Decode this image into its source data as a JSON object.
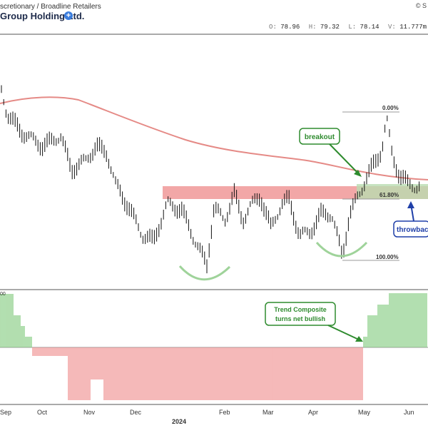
{
  "header": {
    "sector": "scretionary / Broadline Retailers",
    "company": "Group Holding Ltd.",
    "top_right": "© S",
    "ohlc": [
      {
        "label": "O:",
        "value": "78.96"
      },
      {
        "label": "H:",
        "value": "79.32"
      },
      {
        "label": "L:",
        "value": "78.14"
      },
      {
        "label": "V:",
        "value": "11.777m"
      }
    ]
  },
  "colors": {
    "ma_line": "#e58a86",
    "resistance_zone": "#f2a7a7",
    "support_zone": "#b9dcb0",
    "positive_bars": "#7ec97a",
    "negative_bars": "#ee8a8a",
    "annotation_green": "#2e8b2e",
    "annotation_blue": "#1f3fa8",
    "bars": "#111111"
  },
  "chart_data": [
    {
      "type": "ohlc",
      "series": [
        {
          "name": "price",
          "x_dates": [
            "Sep",
            "Oct",
            "Nov",
            "Dec",
            "2024",
            "Feb",
            "Mar",
            "Apr",
            "May",
            "Jun"
          ],
          "approx_closes": [
            88,
            85,
            82,
            86,
            79,
            80,
            79,
            78,
            77,
            78,
            79,
            80,
            78,
            79,
            84,
            86,
            89,
            84,
            80,
            79
          ]
        }
      ],
      "fibonacci": [
        {
          "label": "0.00%"
        },
        {
          "label": "61.80%"
        },
        {
          "label": "100.00%"
        }
      ],
      "annotations": [
        {
          "text": "breakout"
        },
        {
          "text": "throwbac"
        }
      ],
      "moving_average": "declining then flattening red line"
    },
    {
      "type": "bar",
      "indicator_label": "Trend Composite turns net bullish",
      "annotation_lines": [
        "Trend Composite",
        "turns net bullish"
      ],
      "axis_label": "00",
      "values_description": "positive at left, negative Sep to Apr, positive after May"
    }
  ],
  "axis": {
    "x_labels": [
      "Sep",
      "Oct",
      "Nov",
      "Dec",
      "Feb",
      "Mar",
      "Apr",
      "May",
      "Jun"
    ],
    "year_label": "2024"
  }
}
